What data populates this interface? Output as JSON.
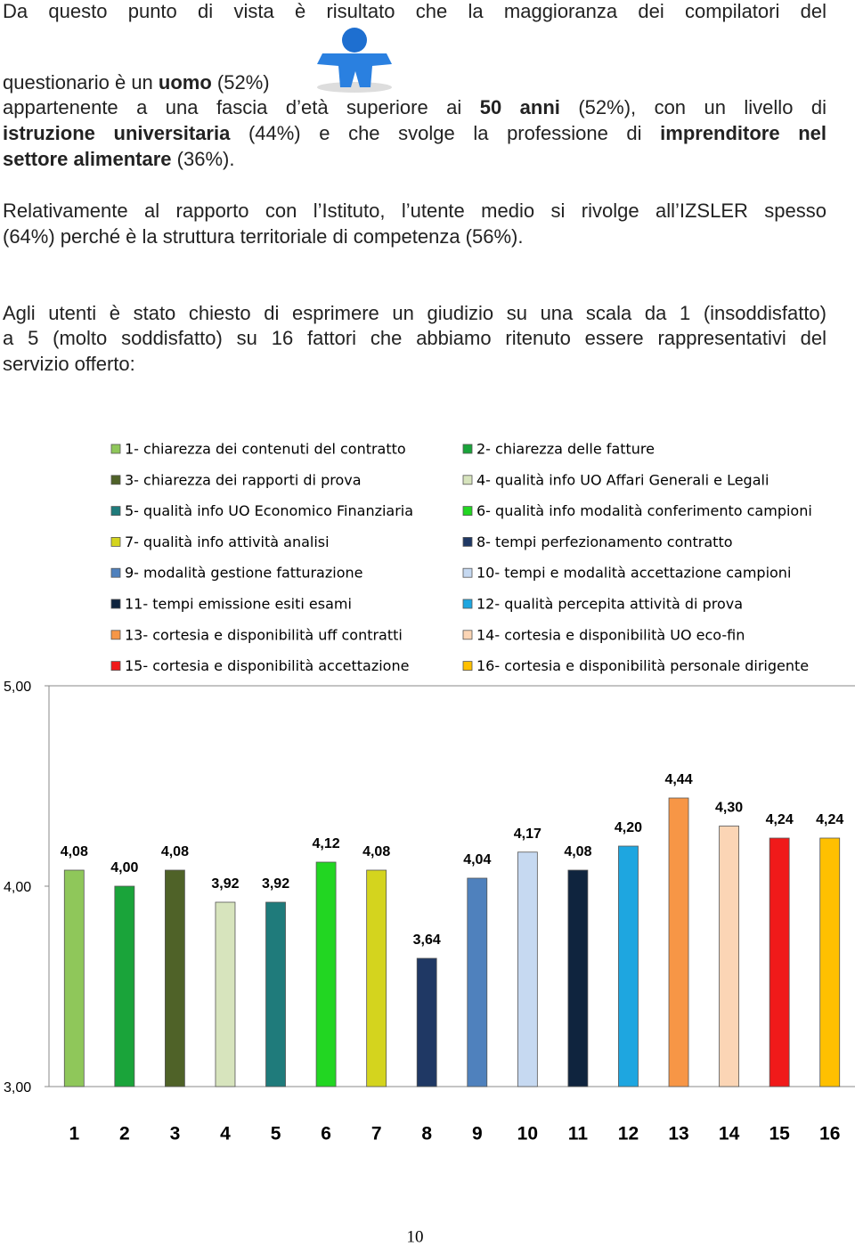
{
  "paragraphs": [
    [
      {
        "justify": true,
        "runs": [
          {
            "text": "Da questo punto di vista è risultato che la maggioranza dei compilatori del",
            "bold": false
          }
        ]
      },
      {
        "justify": false,
        "runs": [
          {
            "text": "questionario è un ",
            "bold": false
          },
          {
            "text": "uomo",
            "bold": true
          },
          {
            "text": " (52%)",
            "bold": false
          }
        ]
      },
      {
        "justify": true,
        "runs": [
          {
            "text": "appartenente a una fascia d’età superiore ai ",
            "bold": false
          },
          {
            "text": "50 anni",
            "bold": true
          },
          {
            "text": " (52%), con un livello di",
            "bold": false
          }
        ]
      },
      {
        "justify": true,
        "runs": [
          {
            "text": "istruzione universitaria",
            "bold": true
          },
          {
            "text": " (44%) e che svolge la professione di ",
            "bold": false
          },
          {
            "text": "imprenditore nel",
            "bold": true
          }
        ]
      },
      {
        "justify": false,
        "runs": [
          {
            "text": "settore alimentare",
            "bold": true
          },
          {
            "text": " (36%).",
            "bold": false
          }
        ]
      }
    ],
    [
      {
        "justify": true,
        "runs": [
          {
            "text": "Relativamente al rapporto con l’Istituto, l’utente medio si rivolge all’IZSLER spesso",
            "bold": false
          }
        ]
      },
      {
        "justify": false,
        "runs": [
          {
            "text": "(64%) perché è la struttura territoriale di competenza (56%).",
            "bold": false
          }
        ]
      }
    ],
    [
      {
        "justify": true,
        "runs": [
          {
            "text": "Agli utenti è stato chiesto di esprimere un giudizio su una scala da 1 (insoddisfatto)",
            "bold": false
          }
        ]
      },
      {
        "justify": true,
        "runs": [
          {
            "text": "a 5 (molto soddisfatto) su 16 fattori che abbiamo ritenuto essere rappresentativi del",
            "bold": false
          }
        ]
      },
      {
        "justify": false,
        "runs": [
          {
            "text": "servizio offerto:",
            "bold": false
          }
        ]
      }
    ]
  ],
  "chart_data": {
    "type": "bar",
    "categories": [
      "1",
      "2",
      "3",
      "4",
      "5",
      "6",
      "7",
      "8",
      "9",
      "10",
      "11",
      "12",
      "13",
      "14",
      "15",
      "16"
    ],
    "legend": [
      "1- chiarezza dei contenuti del contratto",
      "2- chiarezza delle fatture",
      "3- chiarezza dei rapporti di prova",
      "4- qualità info UO Affari Generali e Legali",
      "5- qualità info UO Economico Finanziaria",
      "6- qualità  info modalità conferimento campioni",
      "7- qualità info attività analisi",
      "8- tempi perfezionamento contratto",
      "9- modalità gestione fatturazione",
      "10- tempi e modalità accettazione campioni",
      "11- tempi emissione esiti esami",
      "12- qualità percepita attività di prova",
      "13- cortesia e disponibilità uff contratti",
      "14- cortesia e disponibilità UO eco-fin",
      "15- cortesia e disponibilità accettazione",
      "16- cortesia e disponibilità personale dirigente"
    ],
    "values": [
      4.08,
      4.0,
      4.08,
      3.92,
      3.92,
      4.12,
      4.08,
      3.64,
      4.04,
      4.17,
      4.08,
      4.2,
      4.44,
      4.3,
      4.24,
      4.24
    ],
    "value_labels": [
      "4,08",
      "4,00",
      "4,08",
      "3,92",
      "3,92",
      "4,12",
      "4,08",
      "3,64",
      "4,04",
      "4,17",
      "4,08",
      "4,20",
      "4,44",
      "4,30",
      "4,24",
      "4,24"
    ],
    "colors": [
      "#8fc75a",
      "#1aa43a",
      "#4f6228",
      "#d7e4bd",
      "#1f7b7b",
      "#22d622",
      "#d4d41e",
      "#1f3864",
      "#4f81bd",
      "#c6d9f1",
      "#0f243e",
      "#1ea6e0",
      "#f79646",
      "#fbd5b5",
      "#f01a1a",
      "#ffc000"
    ],
    "ylim": [
      3,
      5
    ],
    "yticks": [
      {
        "value": 3,
        "label": "3,00"
      },
      {
        "value": 4,
        "label": "4,00"
      },
      {
        "value": 5,
        "label": "5,00"
      }
    ],
    "grid": false
  },
  "page_number": "10"
}
